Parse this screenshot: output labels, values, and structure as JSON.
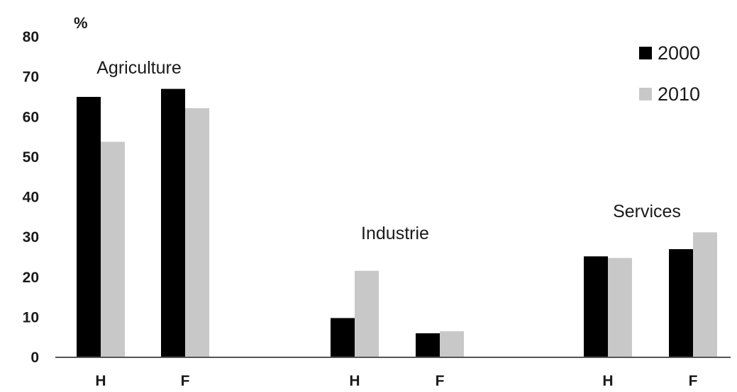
{
  "chart_data": {
    "type": "bar",
    "ylabel": "%",
    "ylim": [
      0,
      80
    ],
    "yticks": [
      0,
      10,
      20,
      30,
      40,
      50,
      60,
      70,
      80
    ],
    "grid": false,
    "legend_position": "top-right",
    "groups": [
      {
        "name": "Agriculture",
        "categories": [
          "H",
          "F"
        ]
      },
      {
        "name": "Industrie",
        "categories": [
          "H",
          "F"
        ]
      },
      {
        "name": "Services",
        "categories": [
          "H",
          "F"
        ]
      }
    ],
    "categories": [
      "H",
      "F",
      "H",
      "F",
      "H",
      "F"
    ],
    "series": [
      {
        "name": "2000",
        "color": "#000000",
        "values": [
          65,
          67,
          9.8,
          6,
          25.2,
          27
        ]
      },
      {
        "name": "2010",
        "color": "#c8c8c8",
        "values": [
          53.8,
          62.2,
          21.6,
          6.5,
          24.8,
          31.2
        ]
      }
    ]
  }
}
